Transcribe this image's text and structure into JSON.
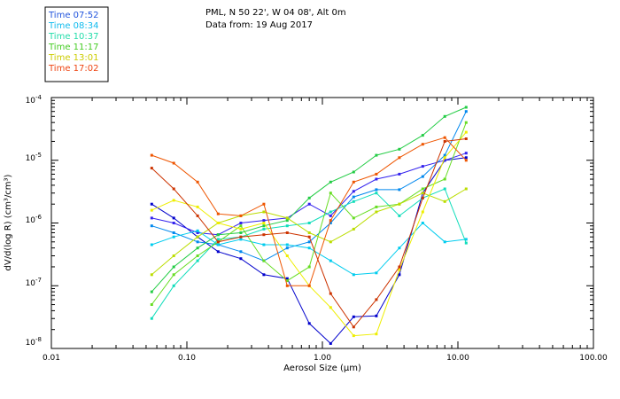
{
  "chart_data": {
    "type": "line",
    "title_line1": "PML, N 50 22', W 04 08', Alt 0m",
    "title_line2": "Data from: 19 Aug 2017",
    "xlabel": "Aerosol Size (μm)",
    "ylabel": "dV/d(log R) (cm³/cm³)",
    "xscale": "log",
    "yscale": "log",
    "xlim": [
      0.01,
      100
    ],
    "ylim": [
      1e-08,
      0.0001
    ],
    "x_tick_labels": [
      "0.01",
      "0.10",
      "1.00",
      "10.00",
      "100.00"
    ],
    "y_tick_labels": [
      {
        "base": "10",
        "exp": "-8"
      },
      {
        "base": "10",
        "exp": "-7"
      },
      {
        "base": "10",
        "exp": "-6"
      },
      {
        "base": "10",
        "exp": "-5"
      },
      {
        "base": "10",
        "exp": "-4"
      }
    ],
    "legend": [
      {
        "label": "Time 07:52",
        "color": "#2255dd"
      },
      {
        "label": "Time 08:34",
        "color": "#11bbee"
      },
      {
        "label": "Time 10:37",
        "color": "#22ddaa"
      },
      {
        "label": "Time 11:17",
        "color": "#44cc22"
      },
      {
        "label": "Time 13:01",
        "color": "#cccc00"
      },
      {
        "label": "Time 17:02",
        "color": "#ee4411"
      }
    ],
    "x": [
      0.055,
      0.08,
      0.12,
      0.17,
      0.25,
      0.37,
      0.55,
      0.8,
      1.15,
      1.7,
      2.5,
      3.7,
      5.5,
      8.0,
      11.5
    ],
    "series": [
      {
        "name": "Time 07:52",
        "color": "#0000cc",
        "values": [
          2e-06,
          1.2e-06,
          6e-07,
          3.5e-07,
          2.7e-07,
          1.5e-07,
          1.3e-07,
          2.5e-08,
          1.2e-08,
          3.2e-08,
          3.3e-08,
          1.5e-07,
          3e-06,
          1e-05,
          1.1e-05
        ]
      },
      {
        "name": "Time 07:52",
        "color": "#3322ee",
        "values": [
          1.2e-06,
          1e-06,
          7e-07,
          6.5e-07,
          1e-06,
          1.1e-06,
          1.2e-06,
          2e-06,
          1.3e-06,
          3.2e-06,
          5e-06,
          6e-06,
          8e-06,
          1e-05,
          1.3e-05
        ]
      },
      {
        "name": "Time 08:34",
        "color": "#0088ee",
        "values": [
          9e-07,
          7e-07,
          5e-07,
          4.5e-07,
          3.5e-07,
          2.5e-07,
          4e-07,
          5e-07,
          1e-06,
          2.6e-06,
          3.4e-06,
          3.4e-06,
          5.5e-06,
          1.2e-05,
          6e-05
        ]
      },
      {
        "name": "Time 08:34",
        "color": "#00ccee",
        "values": [
          4.5e-07,
          6e-07,
          7.5e-07,
          4.5e-07,
          5.5e-07,
          4.5e-07,
          4.5e-07,
          4e-07,
          2.5e-07,
          1.5e-07,
          1.6e-07,
          4e-07,
          1e-06,
          5e-07,
          5.5e-07
        ]
      },
      {
        "name": "Time 10:37",
        "color": "#11ddbb",
        "values": [
          3e-08,
          1e-07,
          2.5e-07,
          5.5e-07,
          6e-07,
          8e-07,
          9e-07,
          1e-06,
          1.5e-06,
          2.2e-06,
          3e-06,
          1.3e-06,
          2.5e-06,
          3.5e-06,
          4.8e-07
        ]
      },
      {
        "name": "Time 11:17",
        "color": "#22cc44",
        "values": [
          8e-08,
          2e-07,
          4e-07,
          6.5e-07,
          7e-07,
          9e-07,
          1.1e-06,
          2.5e-06,
          4.5e-06,
          6.5e-06,
          1.2e-05,
          1.5e-05,
          2.5e-05,
          5e-05,
          7e-05
        ]
      },
      {
        "name": "Time 11:17",
        "color": "#66dd22",
        "values": [
          5e-08,
          1.5e-07,
          3e-07,
          5e-07,
          9e-07,
          2.5e-07,
          1.2e-07,
          2e-07,
          3e-06,
          1.2e-06,
          1.8e-06,
          2e-06,
          3.5e-06,
          5e-06,
          4e-05
        ]
      },
      {
        "name": "Time 13:01",
        "color": "#bbdd00",
        "values": [
          1.5e-07,
          3e-07,
          6e-07,
          1e-06,
          1.3e-06,
          1.5e-06,
          1.2e-06,
          7e-07,
          5e-07,
          8e-07,
          1.5e-06,
          2e-06,
          3e-06,
          2.2e-06,
          3.5e-06
        ]
      },
      {
        "name": "Time 13:01",
        "color": "#eeee00",
        "values": [
          1.6e-06,
          2.3e-06,
          1.8e-06,
          1e-06,
          8e-07,
          1e-06,
          3e-07,
          1e-07,
          4.5e-08,
          1.6e-08,
          1.7e-08,
          1.8e-07,
          1.5e-06,
          1.1e-05,
          2.8e-05
        ]
      },
      {
        "name": "Time 17:02",
        "color": "#ee5500",
        "values": [
          1.2e-05,
          9e-06,
          4.5e-06,
          1.4e-06,
          1.3e-06,
          2e-06,
          1e-07,
          1e-07,
          1.1e-06,
          4.5e-06,
          6e-06,
          1.1e-05,
          1.8e-05,
          2.3e-05,
          1e-05
        ]
      },
      {
        "name": "Time 17:02",
        "color": "#cc3300",
        "values": [
          7.5e-06,
          3.5e-06,
          1.3e-06,
          5e-07,
          6e-07,
          6.5e-07,
          7e-07,
          6e-07,
          7.5e-08,
          2.2e-08,
          6e-08,
          2e-07,
          2.5e-06,
          2e-05,
          2.2e-05
        ]
      }
    ]
  }
}
